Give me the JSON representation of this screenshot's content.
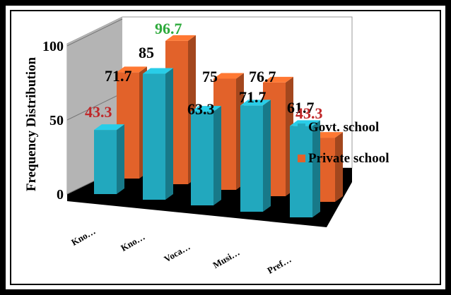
{
  "chart_data": {
    "type": "bar",
    "categories": [
      "Kno…",
      "Kno…",
      "Voca…",
      "Musi…",
      "Pref…"
    ],
    "series": [
      {
        "name": "Govt. school",
        "values": [
          43.3,
          85,
          63.3,
          71.7,
          61.7
        ],
        "color": "#22A8BE"
      },
      {
        "name": "Private school",
        "values": [
          71.7,
          96.7,
          75,
          76.7,
          43.3
        ],
        "color": "#E2622A"
      }
    ],
    "data_label_colors": {
      "Govt. school": [
        "#C0282A",
        "#000000",
        "#000000",
        "#000000",
        "#000000"
      ],
      "Private school": [
        "#000000",
        "#2EAA3C",
        "#000000",
        "#000000",
        "#C0282A"
      ]
    },
    "data_labels": {
      "Govt. school": [
        "43.3",
        "85",
        "63.3",
        "71.7",
        "61.7"
      ],
      "Private school": [
        "71.7",
        "96.7",
        "75",
        "76.7",
        "43.3"
      ]
    },
    "ylabel": "Frequency Distribution",
    "ylim": [
      0,
      100
    ],
    "yticks": [
      "0",
      "50",
      "100"
    ],
    "yticks_values": [
      0,
      50,
      100
    ],
    "legend_position": "right",
    "projection": "3d",
    "wall_color": "#B4B4B4",
    "floor_color": "#000000"
  }
}
